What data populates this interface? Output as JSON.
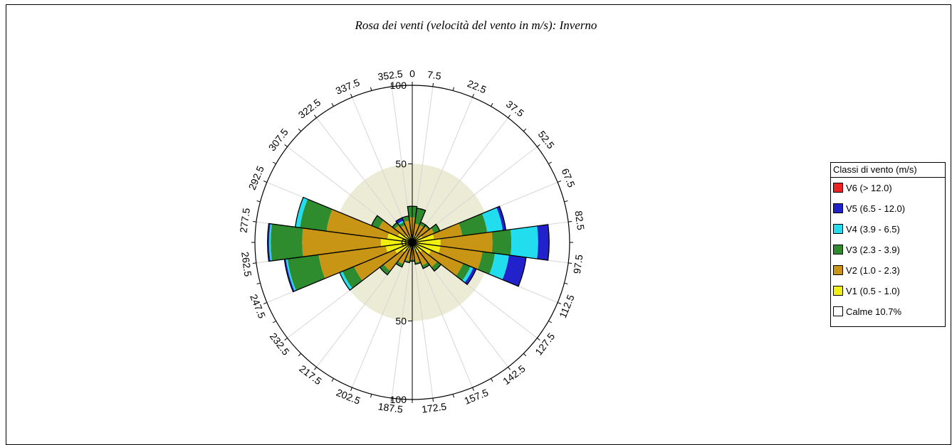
{
  "chart_data": {
    "type": "polar-stacked-bar",
    "title": "Rosa dei venti (velocità del vento in m/s): Inverno",
    "radial_ticks": [
      "100",
      "50",
      "0",
      "50",
      "100"
    ],
    "rmax": 100,
    "inner_circle": 50,
    "angle_labels": [
      "0",
      "7.5",
      "22.5",
      "37.5",
      "52.5",
      "67.5",
      "82.5",
      "97.5",
      "112.5",
      "127.5",
      "142.5",
      "157.5",
      "172.5",
      "187.5",
      "202.5",
      "217.5",
      "232.5",
      "247.5",
      "262.5",
      "277.5",
      "292.5",
      "307.5",
      "322.5",
      "337.5",
      "352.5"
    ],
    "legend_title": "Classi di vento (m/s)",
    "classes": [
      {
        "name": "V6 (> 12.0)",
        "color": "#ee2222"
      },
      {
        "name": "V5 (6.5 - 12.0)",
        "color": "#2222cc"
      },
      {
        "name": "V4 (3.9 - 6.5)",
        "color": "#22ddee"
      },
      {
        "name": "V3 (2.3 - 3.9)",
        "color": "#2e8b2e"
      },
      {
        "name": "V2 (1.0 - 2.3)",
        "color": "#c89614"
      },
      {
        "name": "V1 (0.5 - 1.0)",
        "color": "#f0ef10"
      },
      {
        "name": "Calme 10.7%",
        "color": "#ffffff"
      }
    ],
    "sector_width_deg": 15,
    "sectors": [
      {
        "dir": 0,
        "V1": 4,
        "V2": 16,
        "V3": 23,
        "V4": 23,
        "V5": 23,
        "V6": 0
      },
      {
        "dir": 15,
        "V1": 5,
        "V2": 12,
        "V3": 22,
        "V4": 22,
        "V5": 22,
        "V6": 0
      },
      {
        "dir": 30,
        "V1": 5,
        "V2": 12,
        "V3": 14,
        "V4": 14,
        "V5": 14,
        "V6": 0
      },
      {
        "dir": 45,
        "V1": 5,
        "V2": 13,
        "V3": 14,
        "V4": 14,
        "V5": 14,
        "V6": 0
      },
      {
        "dir": 60,
        "V1": 7,
        "V2": 15,
        "V3": 19,
        "V4": 19,
        "V5": 19,
        "V6": 0
      },
      {
        "dir": 75,
        "V1": 14,
        "V2": 32,
        "V3": 48,
        "V4": 58,
        "V5": 60,
        "V6": 0
      },
      {
        "dir": 90,
        "V1": 18,
        "V2": 51,
        "V3": 63,
        "V4": 80,
        "V5": 87,
        "V6": 0
      },
      {
        "dir": 105,
        "V1": 18,
        "V2": 45,
        "V3": 53,
        "V4": 62,
        "V5": 73,
        "V6": 0
      },
      {
        "dir": 120,
        "V1": 13,
        "V2": 35,
        "V3": 40,
        "V4": 42,
        "V5": 44,
        "V6": 0
      },
      {
        "dir": 135,
        "V1": 8,
        "V2": 20,
        "V3": 23,
        "V4": 23,
        "V5": 23,
        "V6": 0
      },
      {
        "dir": 150,
        "V1": 7,
        "V2": 16,
        "V3": 18,
        "V4": 18,
        "V5": 18,
        "V6": 0
      },
      {
        "dir": 165,
        "V1": 5,
        "V2": 13,
        "V3": 14,
        "V4": 14,
        "V5": 14,
        "V6": 0
      },
      {
        "dir": 180,
        "V1": 4,
        "V2": 11,
        "V3": 12,
        "V4": 12,
        "V5": 12,
        "V6": 0
      },
      {
        "dir": 195,
        "V1": 4,
        "V2": 12,
        "V3": 13,
        "V4": 13,
        "V5": 13,
        "V6": 0
      },
      {
        "dir": 210,
        "V1": 5,
        "V2": 15,
        "V3": 17,
        "V4": 17,
        "V5": 17,
        "V6": 0
      },
      {
        "dir": 225,
        "V1": 8,
        "V2": 23,
        "V3": 26,
        "V4": 26,
        "V5": 26,
        "V6": 0
      },
      {
        "dir": 240,
        "V1": 12,
        "V2": 40,
        "V3": 48,
        "V4": 50,
        "V5": 50,
        "V6": 0
      },
      {
        "dir": 255,
        "V1": 17,
        "V2": 60,
        "V3": 80,
        "V4": 81,
        "V5": 82,
        "V6": 0
      },
      {
        "dir": 270,
        "V1": 20,
        "V2": 70,
        "V3": 90,
        "V4": 91,
        "V5": 92,
        "V6": 0
      },
      {
        "dir": 285,
        "V1": 16,
        "V2": 55,
        "V3": 72,
        "V4": 75,
        "V5": 75,
        "V6": 0
      },
      {
        "dir": 300,
        "V1": 10,
        "V2": 23,
        "V3": 28,
        "V4": 28,
        "V5": 28,
        "V6": 0
      },
      {
        "dir": 315,
        "V1": 6,
        "V2": 14,
        "V3": 16,
        "V4": 16,
        "V5": 16,
        "V6": 0
      },
      {
        "dir": 330,
        "V1": 5,
        "V2": 12,
        "V3": 14,
        "V4": 15,
        "V5": 17,
        "V6": 0
      },
      {
        "dir": 345,
        "V1": 4,
        "V2": 14,
        "V3": 17,
        "V4": 17,
        "V5": 17,
        "V6": 0
      }
    ],
    "grid": true,
    "legend_position": "right"
  }
}
